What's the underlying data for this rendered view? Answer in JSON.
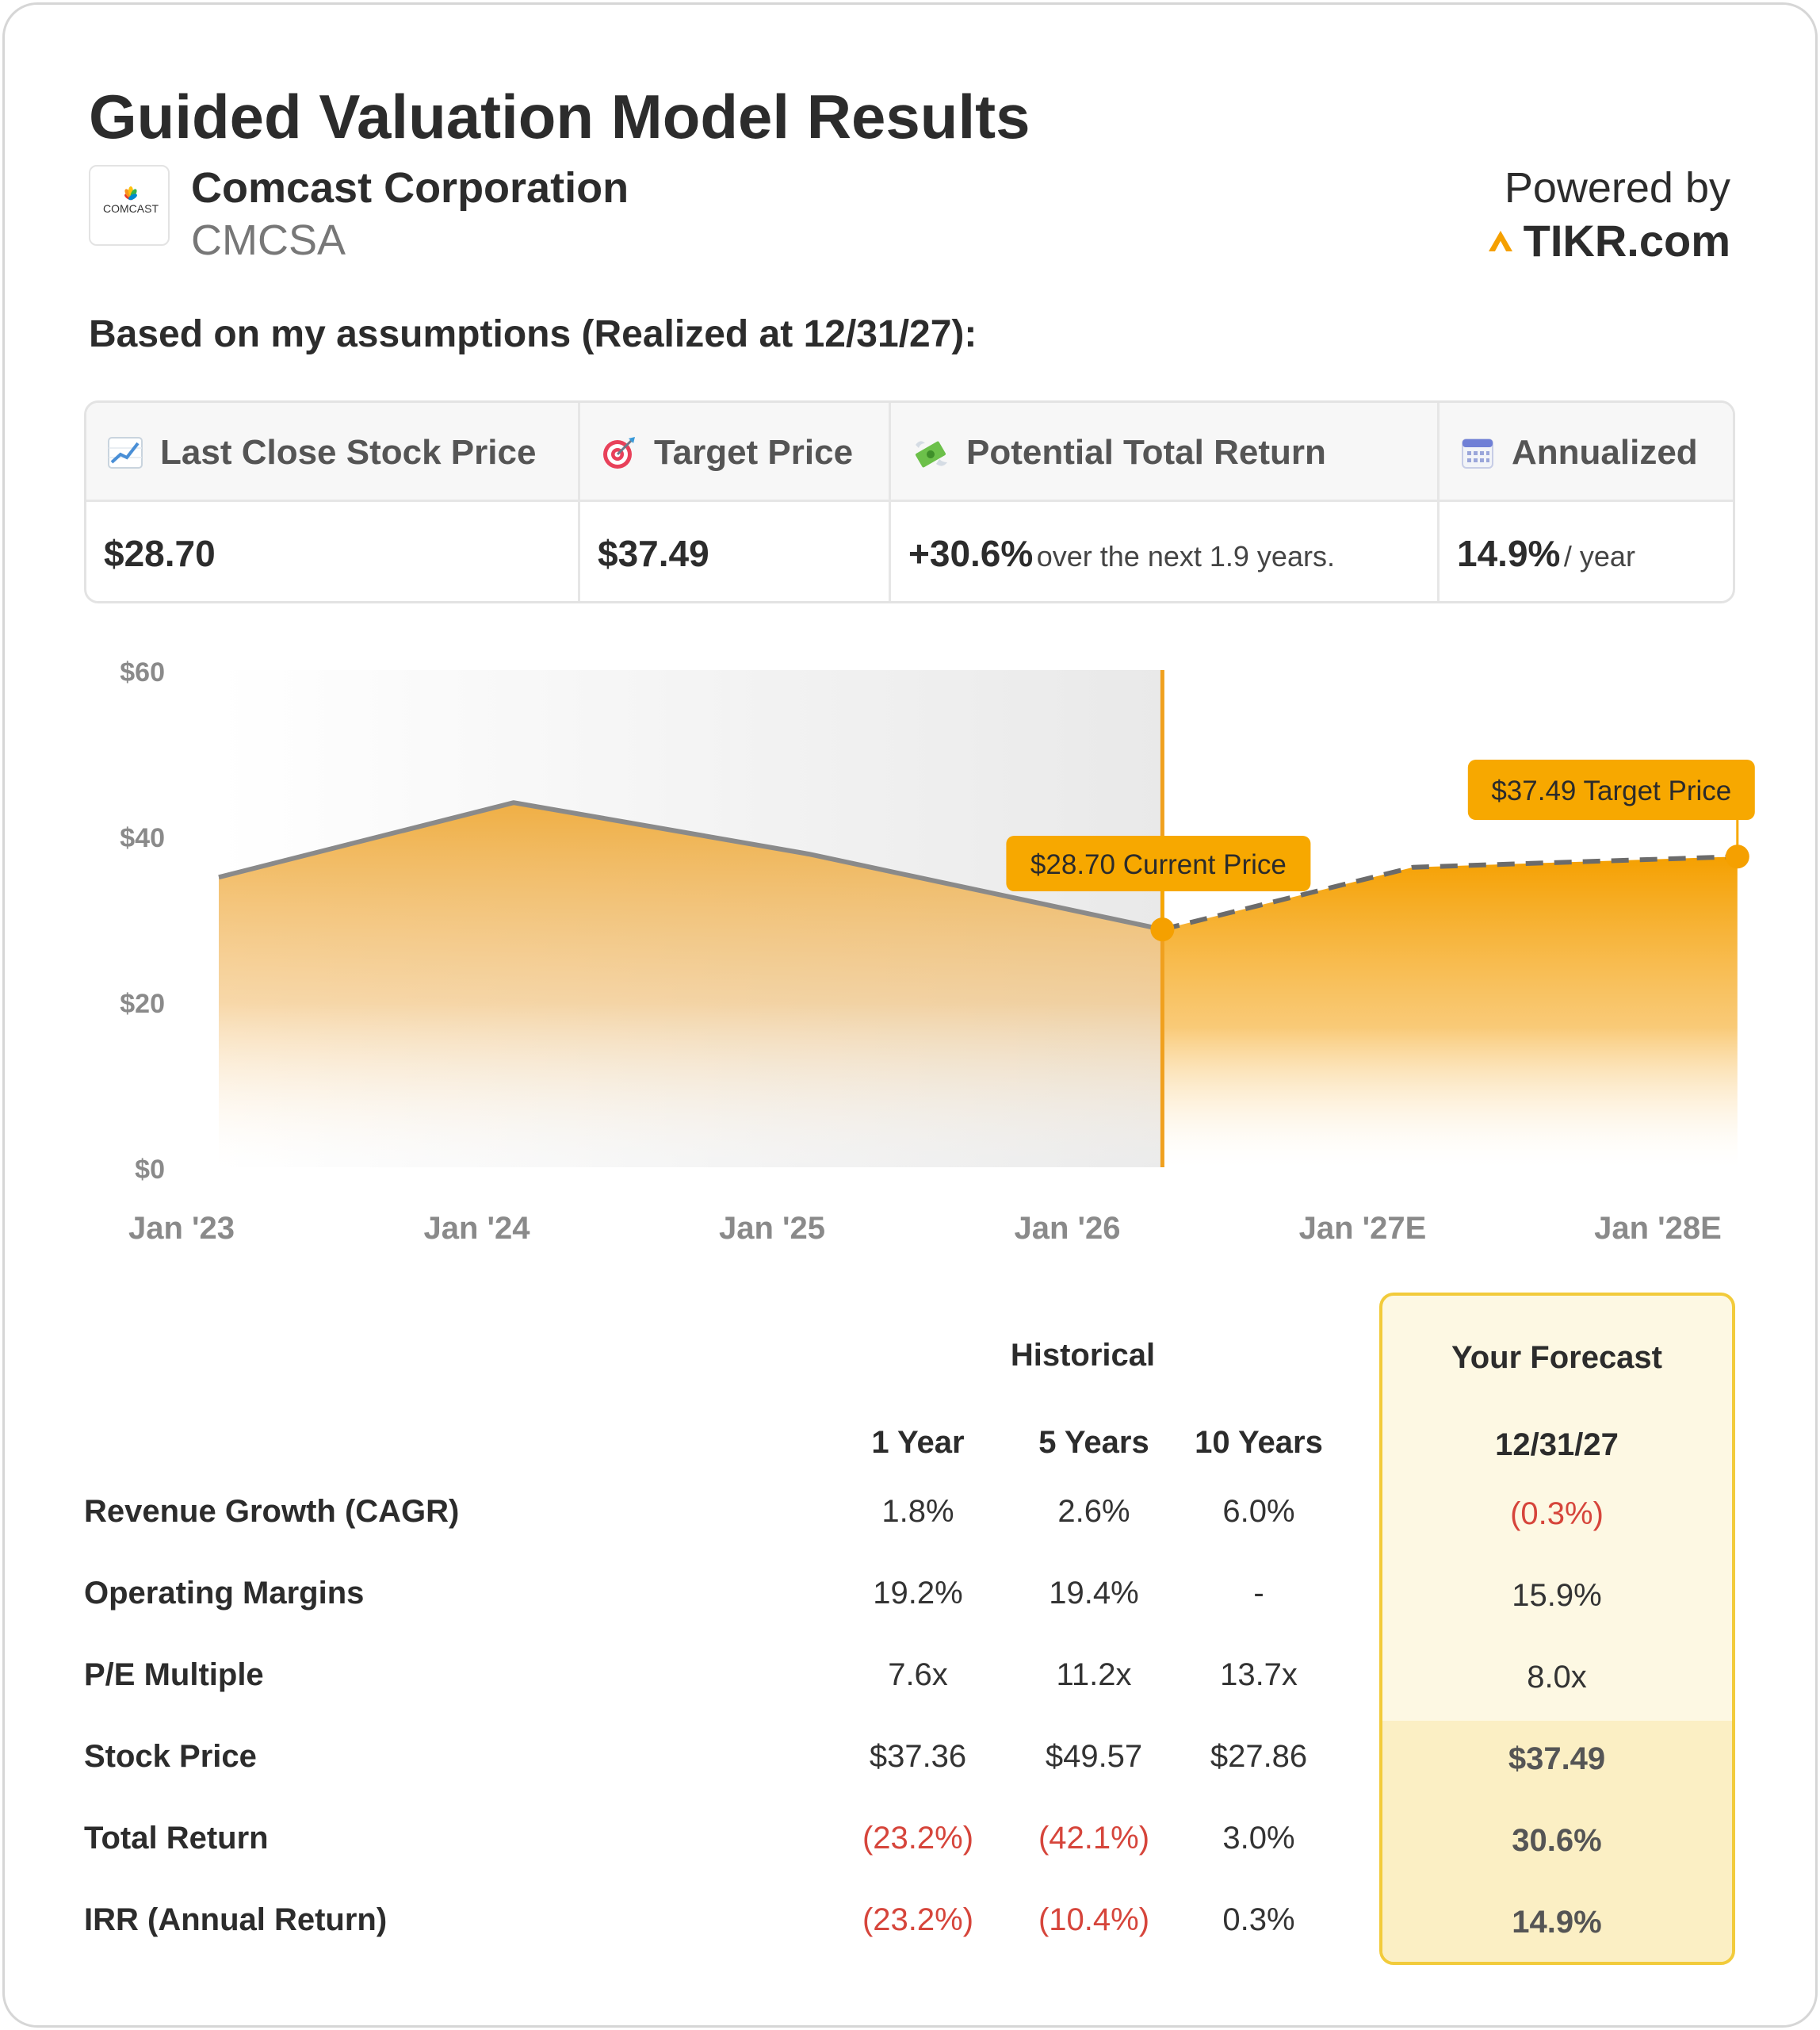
{
  "header": {
    "title": "Guided Valuation Model Results",
    "company_name": "Comcast Corporation",
    "ticker": "CMCSA",
    "logo_text": "COMCAST",
    "powered_by": "Powered by",
    "brand": "TIKR.com"
  },
  "assumptions_text": "Based on my assumptions (Realized at 12/31/27):",
  "summary": {
    "last_close": {
      "label": "Last Close Stock Price",
      "icon": "chart-increasing-icon",
      "value": "$28.70"
    },
    "target": {
      "label": "Target Price",
      "icon": "target-icon",
      "value": "$37.49"
    },
    "potential_return": {
      "label": "Potential Total Return",
      "icon": "money-with-wings-icon",
      "value": "+30.6%",
      "suffix": "over the next 1.9 years."
    },
    "annualized": {
      "label": "Annualized",
      "icon": "calendar-icon",
      "value": "14.9%",
      "suffix": "/ year"
    }
  },
  "chart_data": {
    "type": "area",
    "x": [
      "Jan '23",
      "Jan '24",
      "Jan '25",
      "Jan '26",
      "Jan '27E",
      "Jan '28E"
    ],
    "historical": [
      [
        0,
        35.0
      ],
      [
        1,
        44.0
      ],
      [
        2,
        37.8
      ],
      [
        3.2,
        28.7
      ]
    ],
    "forecast": [
      [
        3.2,
        28.7
      ],
      [
        4.05,
        36.2
      ],
      [
        5.15,
        37.49
      ]
    ],
    "y_ticks": [
      "$0",
      "$20",
      "$40",
      "$60"
    ],
    "ylim": [
      0,
      60
    ],
    "grid": false,
    "annotations": [
      {
        "text": "$28.70 Current Price",
        "x": 3.2,
        "y": 28.7
      },
      {
        "text": "$37.49 Target Price",
        "x": 5.15,
        "y": 37.49
      }
    ],
    "colors": {
      "area": "#f5a623",
      "line": "#8a8a8a",
      "marker": "#f5a000",
      "divider": "#f0a01e",
      "label_bg": "#f7a800",
      "shade": "#ececec"
    }
  },
  "metrics": {
    "historical_title": "Historical",
    "forecast_title": "Your Forecast",
    "columns": [
      "1 Year",
      "5 Years",
      "10 Years"
    ],
    "forecast_date": "12/31/27",
    "rows": [
      {
        "label": "Revenue Growth (CAGR)",
        "values": [
          "1.8%",
          "2.6%",
          "6.0%"
        ],
        "forecast": "(0.3%)"
      },
      {
        "label": "Operating Margins",
        "values": [
          "19.2%",
          "19.4%",
          "-"
        ],
        "forecast": "15.9%"
      },
      {
        "label": "P/E Multiple",
        "values": [
          "7.6x",
          "11.2x",
          "13.7x"
        ],
        "forecast": "8.0x"
      },
      {
        "label": "Stock Price",
        "values": [
          "$37.36",
          "$49.57",
          "$27.86"
        ],
        "forecast": "$37.49"
      },
      {
        "label": "Total Return",
        "values": [
          "(23.2%)",
          "(42.1%)",
          "3.0%"
        ],
        "forecast": "30.6%"
      },
      {
        "label": "IRR (Annual Return)",
        "values": [
          "(23.2%)",
          "(10.4%)",
          "0.3%"
        ],
        "forecast": "14.9%"
      }
    ]
  }
}
